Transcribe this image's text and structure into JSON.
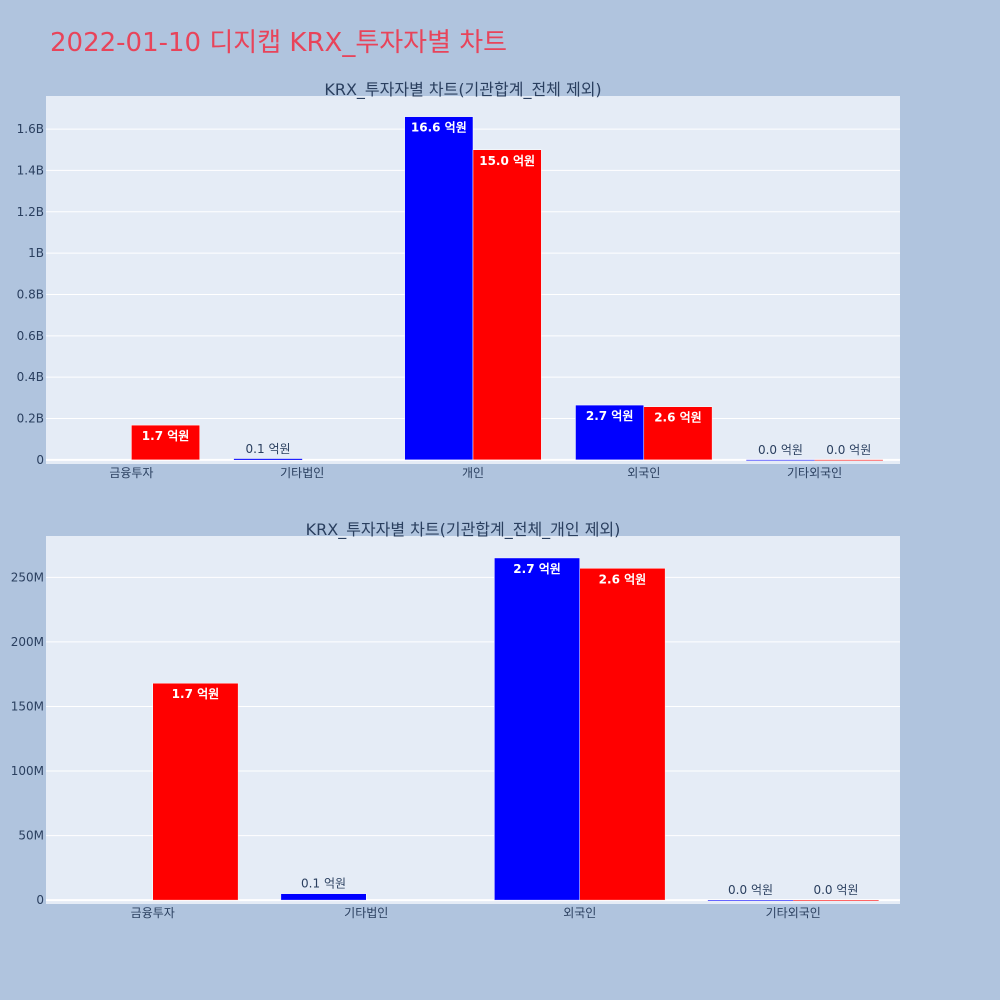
{
  "page": {
    "title": "2022-01-10 디지캡 KRX_투자자별 차트",
    "background": "#b0c4de",
    "title_color": "#e8445a"
  },
  "chart_data": [
    {
      "type": "bar",
      "title": "KRX_투자자별 차트(기관합계_전체 제외)",
      "categories": [
        "금융투자",
        "기타법인",
        "개인",
        "외국인",
        "기타외국인"
      ],
      "series": [
        {
          "color": "#0000ff",
          "values": [
            0,
            5000000,
            1660000000,
            265000000,
            0
          ],
          "labels": [
            "",
            "0.1 억원",
            "16.6 억원",
            "2.7 억원",
            "0.0 억원"
          ]
        },
        {
          "color": "#ff0000",
          "values": [
            168000000,
            0,
            1500000000,
            257000000,
            0
          ],
          "labels": [
            "1.7 억원",
            "",
            "15.0 억원",
            "2.6 억원",
            "0.0 억원"
          ]
        }
      ],
      "ylim": [
        -20000000,
        1760000000
      ],
      "yticks": [
        0,
        200000000,
        400000000,
        600000000,
        800000000,
        1000000000,
        1200000000,
        1400000000,
        1600000000
      ],
      "yticklabels": [
        "0",
        "0.2B",
        "0.4B",
        "0.6B",
        "0.8B",
        "1B",
        "1.2B",
        "1.4B",
        "1.6B"
      ],
      "plot_bg": "#e5ecf6",
      "grid": true,
      "legend": "none"
    },
    {
      "type": "bar",
      "title": "KRX_투자자별 차트(기관합계_전체_개인 제외)",
      "categories": [
        "금융투자",
        "기타법인",
        "외국인",
        "기타외국인"
      ],
      "series": [
        {
          "color": "#0000ff",
          "values": [
            0,
            5000000,
            265000000,
            0
          ],
          "labels": [
            "",
            "0.1 억원",
            "2.7 억원",
            "0.0 억원"
          ]
        },
        {
          "color": "#ff0000",
          "values": [
            168000000,
            0,
            257000000,
            0
          ],
          "labels": [
            "1.7 억원",
            "",
            "2.6 억원",
            "0.0 억원"
          ]
        }
      ],
      "ylim": [
        -3000000,
        282000000
      ],
      "yticks": [
        0,
        50000000,
        100000000,
        150000000,
        200000000,
        250000000
      ],
      "yticklabels": [
        "0",
        "50M",
        "100M",
        "150M",
        "200M",
        "250M"
      ],
      "plot_bg": "#e5ecf6",
      "grid": true,
      "legend": "none"
    }
  ]
}
